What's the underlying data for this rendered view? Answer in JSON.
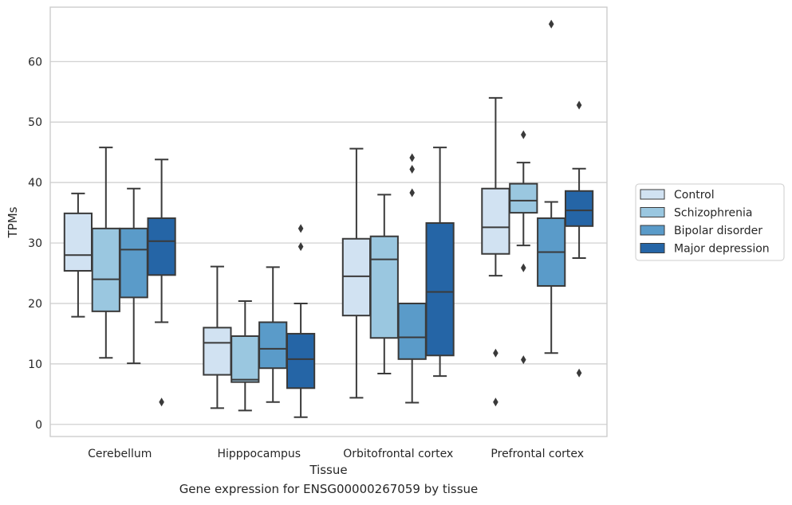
{
  "caption": "Gene expression for ENSG00000267059 by tissue",
  "chart_data": {
    "type": "box",
    "xlabel": "Tissue",
    "ylabel": "TPMs",
    "ylim": [
      -2,
      69
    ],
    "yticks": [
      0,
      10,
      20,
      30,
      40,
      50,
      60
    ],
    "grid": "horizontal",
    "legend_position": "right",
    "categories": [
      "Cerebellum",
      "Hipppocampus",
      "Orbitofrontal cortex",
      "Prefrontal cortex"
    ],
    "series": [
      {
        "name": "Control",
        "color": "#d1e2f2",
        "boxes": [
          {
            "whislo": 17.8,
            "q1": 25.4,
            "med": 28.0,
            "q3": 34.9,
            "whishi": 38.2,
            "fliers": []
          },
          {
            "whislo": 2.7,
            "q1": 8.2,
            "med": 13.5,
            "q3": 16.0,
            "whishi": 26.1,
            "fliers": []
          },
          {
            "whislo": 4.4,
            "q1": 18.0,
            "med": 24.5,
            "q3": 30.7,
            "whishi": 45.6,
            "fliers": []
          },
          {
            "whislo": 24.6,
            "q1": 28.2,
            "med": 32.6,
            "q3": 39.0,
            "whishi": 54.0,
            "fliers": [
              3.7,
              11.8
            ]
          }
        ]
      },
      {
        "name": "Schizophrenia",
        "color": "#9ac7e0",
        "boxes": [
          {
            "whislo": 11.0,
            "q1": 18.7,
            "med": 24.0,
            "q3": 32.4,
            "whishi": 45.8,
            "fliers": []
          },
          {
            "whislo": 2.3,
            "q1": 7.0,
            "med": 7.4,
            "q3": 14.6,
            "whishi": 20.4,
            "fliers": []
          },
          {
            "whislo": 8.4,
            "q1": 14.3,
            "med": 27.3,
            "q3": 31.1,
            "whishi": 38.0,
            "fliers": []
          },
          {
            "whislo": 29.6,
            "q1": 35.0,
            "med": 37.0,
            "q3": 39.8,
            "whishi": 43.3,
            "fliers": [
              10.7,
              25.9,
              47.9
            ]
          }
        ]
      },
      {
        "name": "Bipolar disorder",
        "color": "#5a9bc9",
        "boxes": [
          {
            "whislo": 10.1,
            "q1": 21.0,
            "med": 28.9,
            "q3": 32.4,
            "whishi": 39.0,
            "fliers": []
          },
          {
            "whislo": 3.7,
            "q1": 9.3,
            "med": 12.5,
            "q3": 16.9,
            "whishi": 26.0,
            "fliers": []
          },
          {
            "whislo": 3.6,
            "q1": 10.8,
            "med": 14.4,
            "q3": 20.0,
            "whishi": 20.0,
            "fliers": [
              38.3,
              42.2,
              44.1
            ]
          },
          {
            "whislo": 11.8,
            "q1": 22.9,
            "med": 28.5,
            "q3": 34.1,
            "whishi": 36.8,
            "fliers": [
              66.2
            ]
          }
        ]
      },
      {
        "name": "Major depression",
        "color": "#2565a6",
        "boxes": [
          {
            "whislo": 16.9,
            "q1": 24.7,
            "med": 30.3,
            "q3": 34.1,
            "whishi": 43.8,
            "fliers": [
              3.7
            ]
          },
          {
            "whislo": 1.2,
            "q1": 6.0,
            "med": 10.8,
            "q3": 15.0,
            "whishi": 20.0,
            "fliers": [
              29.4,
              32.4
            ]
          },
          {
            "whislo": 8.0,
            "q1": 11.4,
            "med": 21.9,
            "q3": 33.3,
            "whishi": 45.8,
            "fliers": []
          },
          {
            "whislo": 27.5,
            "q1": 32.8,
            "med": 35.4,
            "q3": 38.6,
            "whishi": 42.3,
            "fliers": [
              8.5,
              52.8
            ]
          }
        ]
      }
    ]
  }
}
